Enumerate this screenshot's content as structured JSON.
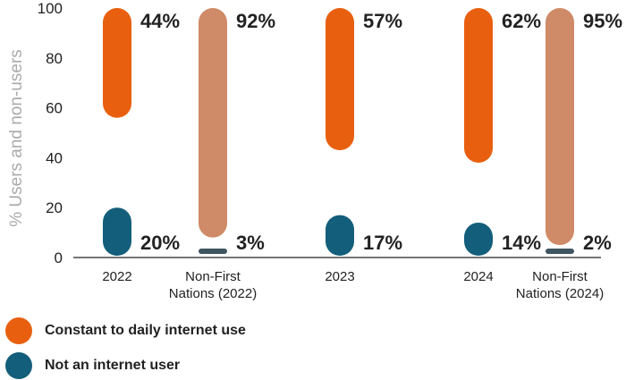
{
  "chart_data": {
    "type": "range-bar",
    "ylabel": "% Users and non-users",
    "ylim": [
      0,
      100
    ],
    "yticks": [
      0,
      20,
      40,
      60,
      80,
      100
    ],
    "categories": [
      {
        "lines": [
          "2022"
        ]
      },
      {
        "lines": [
          "Non-First",
          "Nations (2022)"
        ]
      },
      {
        "lines": [
          "2023"
        ]
      },
      {
        "lines": [
          "2024"
        ]
      },
      {
        "lines": [
          "Non-First",
          "Nations (2024)"
        ]
      }
    ],
    "series": [
      {
        "name": "Constant to daily internet use",
        "values": [
          44,
          92,
          57,
          62,
          95
        ],
        "labels": [
          "44%",
          "92%",
          "57%",
          "62%",
          "95%"
        ]
      },
      {
        "name": "Not an internet user",
        "values": [
          20,
          3,
          17,
          14,
          2
        ],
        "labels": [
          "20%",
          "3%",
          "17%",
          "14%",
          "2%"
        ]
      }
    ],
    "colors": {
      "daily": "#E8600F",
      "daily_comparison": "#CF8A67",
      "nonuser": "#135E7A",
      "nonuser_comparison": "#3F5560"
    },
    "comparison_categories": [
      1,
      4
    ],
    "legend_position": "bottom-left"
  }
}
